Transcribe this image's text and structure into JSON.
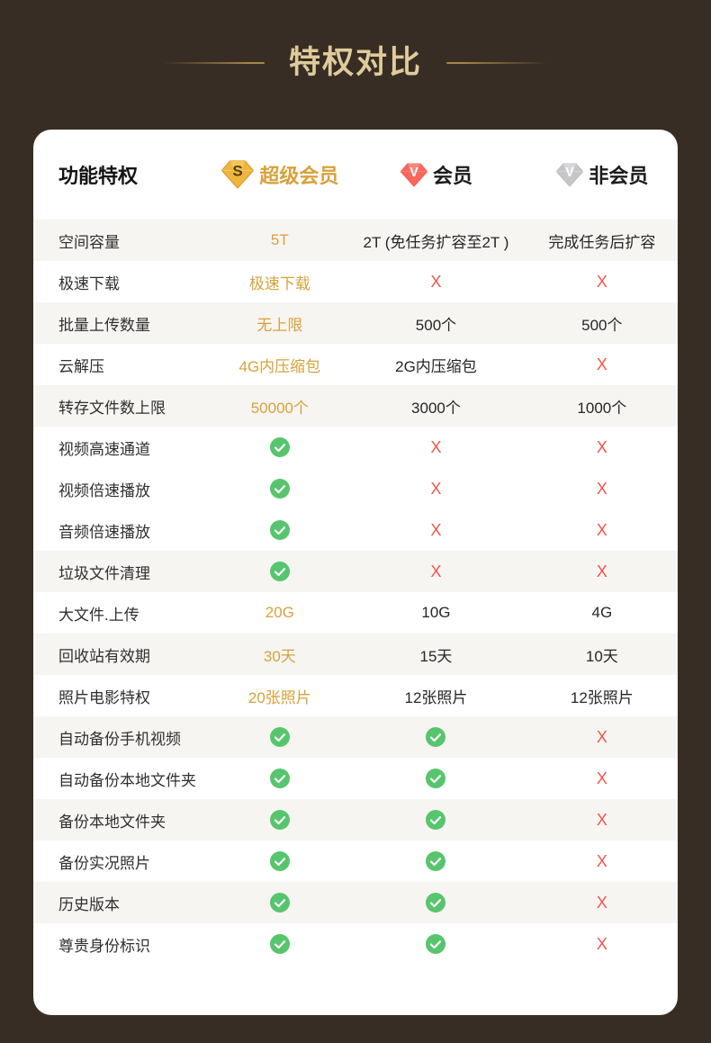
{
  "title": {
    "text": "特权对比"
  },
  "colors": {
    "background": "#372D24",
    "title_text": "#DFCB9B",
    "title_line_gold": "#A6874B",
    "gold_accent": "#D7A23C",
    "cross_red": "#F4544C",
    "check_green": "#57C56D",
    "shaded_row": "#F7F5F2",
    "svip_badge": "#EEB63C",
    "vip_badge": "#F8675E",
    "free_badge": "#C6C5C9"
  },
  "table": {
    "header": {
      "feature_label": "功能特权",
      "tiers": [
        {
          "label": "超级会员",
          "badge_letter": "S",
          "icon": "svip-diamond-badge-icon"
        },
        {
          "label": "会员",
          "badge_letter": "V",
          "icon": "vip-diamond-badge-icon"
        },
        {
          "label": "非会员",
          "badge_letter": "V",
          "icon": "free-diamond-badge-icon"
        }
      ]
    },
    "symbols": {
      "cross": "X",
      "check": "check-icon"
    },
    "rows": [
      {
        "feature": "空间容量",
        "shaded": true,
        "cells": [
          {
            "t": "text",
            "v": "5T",
            "gold": true
          },
          {
            "t": "text",
            "v": "2T (免任务扩容至2T )"
          },
          {
            "t": "text",
            "v": "完成任务后扩容"
          }
        ]
      },
      {
        "feature": "极速下载",
        "shaded": false,
        "cells": [
          {
            "t": "text",
            "v": "极速下载",
            "gold": true
          },
          {
            "t": "cross"
          },
          {
            "t": "cross"
          }
        ]
      },
      {
        "feature": "批量上传数量",
        "shaded": true,
        "cells": [
          {
            "t": "text",
            "v": "无上限",
            "gold": true
          },
          {
            "t": "text",
            "v": "500个"
          },
          {
            "t": "text",
            "v": "500个"
          }
        ]
      },
      {
        "feature": "云解压",
        "shaded": false,
        "cells": [
          {
            "t": "text",
            "v": "4G内压缩包",
            "gold": true
          },
          {
            "t": "text",
            "v": "2G内压缩包"
          },
          {
            "t": "cross"
          }
        ]
      },
      {
        "feature": "转存文件数上限",
        "shaded": true,
        "cells": [
          {
            "t": "text",
            "v": "50000个",
            "gold": true
          },
          {
            "t": "text",
            "v": "3000个"
          },
          {
            "t": "text",
            "v": "1000个"
          }
        ]
      },
      {
        "feature": "视频高速通道",
        "shaded": false,
        "cells": [
          {
            "t": "check"
          },
          {
            "t": "cross"
          },
          {
            "t": "cross"
          }
        ]
      },
      {
        "feature": "视频倍速播放",
        "shaded": false,
        "cells": [
          {
            "t": "check"
          },
          {
            "t": "cross"
          },
          {
            "t": "cross"
          }
        ]
      },
      {
        "feature": "音频倍速播放",
        "shaded": false,
        "cells": [
          {
            "t": "check"
          },
          {
            "t": "cross"
          },
          {
            "t": "cross"
          }
        ]
      },
      {
        "feature": "垃圾文件清理",
        "shaded": true,
        "cells": [
          {
            "t": "check"
          },
          {
            "t": "cross"
          },
          {
            "t": "cross"
          }
        ]
      },
      {
        "feature": "大文件.上传",
        "shaded": false,
        "cells": [
          {
            "t": "text",
            "v": "20G",
            "gold": true
          },
          {
            "t": "text",
            "v": "10G"
          },
          {
            "t": "text",
            "v": "4G"
          }
        ]
      },
      {
        "feature": "回收站有效期",
        "shaded": true,
        "cells": [
          {
            "t": "text",
            "v": "30天",
            "gold": true
          },
          {
            "t": "text",
            "v": "15天"
          },
          {
            "t": "text",
            "v": "10天"
          }
        ]
      },
      {
        "feature": "照片电影特权",
        "shaded": false,
        "cells": [
          {
            "t": "text",
            "v": "20张照片",
            "gold": true
          },
          {
            "t": "text",
            "v": "12张照片"
          },
          {
            "t": "text",
            "v": "12张照片"
          }
        ]
      },
      {
        "feature": "自动备份手机视频",
        "shaded": true,
        "cells": [
          {
            "t": "check"
          },
          {
            "t": "check"
          },
          {
            "t": "cross"
          }
        ]
      },
      {
        "feature": "自动备份本地文件夹",
        "shaded": false,
        "cells": [
          {
            "t": "check"
          },
          {
            "t": "check"
          },
          {
            "t": "cross"
          }
        ]
      },
      {
        "feature": "备份本地文件夹",
        "shaded": true,
        "cells": [
          {
            "t": "check"
          },
          {
            "t": "check"
          },
          {
            "t": "cross"
          }
        ]
      },
      {
        "feature": "备份实况照片",
        "shaded": false,
        "cells": [
          {
            "t": "check"
          },
          {
            "t": "check"
          },
          {
            "t": "cross"
          }
        ]
      },
      {
        "feature": "历史版本",
        "shaded": true,
        "cells": [
          {
            "t": "check"
          },
          {
            "t": "check"
          },
          {
            "t": "cross"
          }
        ]
      },
      {
        "feature": "尊贵身份标识",
        "shaded": false,
        "cells": [
          {
            "t": "check"
          },
          {
            "t": "check"
          },
          {
            "t": "cross"
          }
        ]
      }
    ]
  }
}
